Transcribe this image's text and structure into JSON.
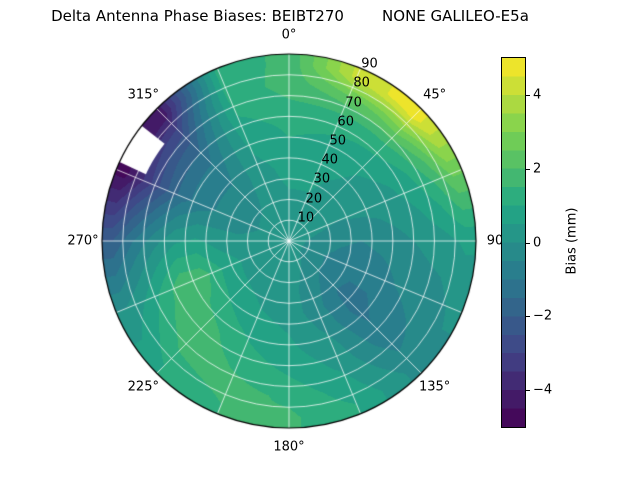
{
  "chart_data": {
    "type": "heatmap",
    "projection": "polar",
    "title": "Delta Antenna Phase Biases: BEIBT270        NONE GALILEO-E5a",
    "background": "#ffffff",
    "angle_labels": [
      {
        "deg": 0,
        "text": "0°"
      },
      {
        "deg": 45,
        "text": "45°"
      },
      {
        "deg": 90,
        "text": "90"
      },
      {
        "deg": 135,
        "text": "135°"
      },
      {
        "deg": 180,
        "text": "180°"
      },
      {
        "deg": 225,
        "text": "225°"
      },
      {
        "deg": 270,
        "text": "270°"
      },
      {
        "deg": 315,
        "text": "315°"
      }
    ],
    "radial_range": [
      0,
      90
    ],
    "radial_ticks": {
      "angle_deg": 22.5,
      "values": [
        10,
        20,
        30,
        40,
        50,
        60,
        70,
        80,
        90
      ],
      "labels": [
        "10",
        "20",
        "30",
        "40",
        "50",
        "60",
        "70",
        "80",
        "90"
      ]
    },
    "grid": {
      "ring_step": 10,
      "spoke_step_deg": 22.5,
      "color": "#ffffff"
    },
    "colorbar": {
      "label": "Bias (mm)",
      "min": -5,
      "max": 5,
      "ticks": [
        {
          "value": 4,
          "label": "4"
        },
        {
          "value": 2,
          "label": "2"
        },
        {
          "value": 0,
          "label": "0"
        },
        {
          "value": -2,
          "label": "−2"
        },
        {
          "value": -4,
          "label": "−4"
        }
      ],
      "colormap": "viridis"
    },
    "colormap_stops": [
      [
        0.0,
        "#440154"
      ],
      [
        0.2,
        "#414487"
      ],
      [
        0.4,
        "#2a788e"
      ],
      [
        0.6,
        "#22a884"
      ],
      [
        0.8,
        "#7ad151"
      ],
      [
        1.0,
        "#fde725"
      ]
    ],
    "levels_step": 0.5,
    "azimuth_centers_deg": [
      0,
      22.5,
      45,
      67.5,
      90,
      112.5,
      135,
      157.5,
      180,
      202.5,
      225,
      247.5,
      270,
      292.5,
      315,
      337.5
    ],
    "ring_center_radii": [
      5,
      15,
      25,
      35,
      45,
      55,
      65,
      75,
      85
    ],
    "values": [
      [
        0.4,
        0.4,
        0.5,
        0.7,
        0.9,
        1.1,
        1.4,
        1.7,
        1.6
      ],
      [
        0.4,
        0.4,
        0.5,
        0.6,
        0.8,
        1.0,
        1.4,
        2.4,
        4.2
      ],
      [
        0.3,
        0.3,
        0.3,
        0.4,
        0.5,
        0.8,
        1.4,
        2.8,
        4.8
      ],
      [
        0.2,
        0.1,
        0.0,
        0.1,
        0.2,
        0.4,
        0.8,
        1.5,
        2.6
      ],
      [
        0.1,
        -0.2,
        -0.4,
        -0.5,
        -0.3,
        -0.1,
        0.1,
        0.3,
        0.6
      ],
      [
        0.1,
        -0.4,
        -0.7,
        -0.9,
        -0.8,
        -0.5,
        -0.3,
        -0.2,
        0.1
      ],
      [
        0.1,
        -0.3,
        -0.7,
        -1.1,
        -1.2,
        -1.0,
        -0.8,
        -0.5,
        -0.2
      ],
      [
        0.2,
        0.0,
        -0.2,
        -0.3,
        -0.1,
        0.2,
        0.4,
        0.7,
        1.0
      ],
      [
        0.3,
        0.2,
        0.2,
        0.3,
        0.5,
        0.7,
        1.0,
        1.4,
        1.6
      ],
      [
        0.3,
        0.2,
        0.3,
        0.5,
        0.8,
        1.1,
        1.4,
        1.7,
        1.5
      ],
      [
        0.3,
        0.3,
        0.4,
        0.8,
        1.2,
        1.7,
        1.9,
        1.5,
        1.0
      ],
      [
        0.3,
        0.3,
        0.5,
        1.0,
        1.8,
        1.9,
        1.2,
        0.5,
        0.0
      ],
      [
        0.2,
        0.1,
        0.1,
        0.3,
        0.6,
        0.4,
        -0.2,
        -1.0,
        -2.0
      ],
      [
        0.2,
        0.0,
        -0.2,
        -0.4,
        -0.7,
        -1.2,
        -2.2,
        -3.4,
        -4.7
      ],
      [
        0.3,
        0.1,
        -0.2,
        -0.4,
        -0.7,
        -1.1,
        -1.8,
        -2.8,
        -4.3
      ],
      [
        0.4,
        0.3,
        0.3,
        0.3,
        0.5,
        0.7,
        1.0,
        1.2,
        1.3
      ]
    ],
    "masked_region": {
      "azimuth_deg": [
        295,
        308
      ],
      "radius": [
        76,
        90
      ]
    }
  }
}
